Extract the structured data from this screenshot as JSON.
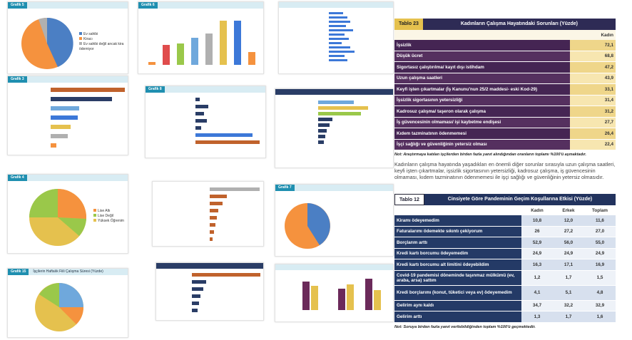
{
  "thumbs": [
    {
      "tag": "Grafik 5",
      "legend": [
        "Ev sahibi",
        "Kiracı",
        "Ev sahibi değil ancak kira ödemiyor"
      ]
    },
    {
      "tag": "Grafik 6"
    },
    {
      "tag": "Grafik 3"
    },
    {
      "tag": "Grafik 8"
    },
    {
      "tag": "Grafik 4",
      "legend": [
        "Lise Altı",
        "Lise Değil",
        "Yüksek Öğrenim"
      ]
    },
    {
      "tag": "Grafik 7"
    },
    {
      "tag": "Grafik 15",
      "title": "İşçilerin Haftalık Fiili Çalışma Süresi (Yüzde)"
    }
  ],
  "table23": {
    "tag": "Tablo 23",
    "title": "Kadınların Çalışma Hayatındaki Sorunları (Yüzde)",
    "column": "Kadın",
    "rows": [
      [
        "İşsizlik",
        "72,1"
      ],
      [
        "Düşük ücret",
        "68,8"
      ],
      [
        "Sigortasız çalıştırılma/ kayıt dışı istihdam",
        "47,2"
      ],
      [
        "Uzun çalışma saatleri",
        "43,9"
      ],
      [
        "Keyfi işten çıkartmalar (İş Kanunu'nun 25/2 maddesi- eski Kod-29)",
        "33,1"
      ],
      [
        "İşsizlik sigortasının yetersizliği",
        "31,4"
      ],
      [
        "Kadrosuz çalışma/ taşeron olarak çalışma",
        "31,2"
      ],
      [
        "İş güvencesinin olmaması/ işi kaybetme endişesi",
        "27,7"
      ],
      [
        "Kıdem tazminatının ödenmemesi",
        "26,4"
      ],
      [
        "İşçi sağlığı ve güvenliğinin yetersiz olması",
        "22,4"
      ]
    ],
    "note": "Not: Araştırmaya katılan işçilerden birden fazla yanıt alındığından oranların toplamı %100'ü aşmaktadır.",
    "paragraph": "Kadınların çalışma hayatında yaşadıkları en önemli diğer sorunlar sırasıyla uzun çalışma saatleri, keyfi işten çıkartmalar, işsizlik sigortasının yetersizliği, kadrosuz çalışma, iş güvencesinin olmaması, kıdem tazminatının ödenmemesi ile işçi sağlığı ve güvenliğinin yetersiz olmasıdır."
  },
  "table12": {
    "tag": "Tablo 12",
    "title": "Cinsiyete Göre Pandeminin Geçim Koşullarına Etkisi (Yüzde)",
    "columns": [
      "Kadın",
      "Erkek",
      "Toplam"
    ],
    "rows": [
      [
        "Kiramı ödeyemedim",
        "10,8",
        "12,0",
        "11,6"
      ],
      [
        "Faturalarımı ödemekte sıkıntı çekiyorum",
        "26",
        "27,2",
        "27,0"
      ],
      [
        "Borçlarım arttı",
        "52,9",
        "56,0",
        "55,0"
      ],
      [
        "Kredi kartı borcumu ödeyemedim",
        "24,9",
        "24,9",
        "24,9"
      ],
      [
        "Kredi kartı borcumu alt limitini ödeyebildim",
        "16,3",
        "17,1",
        "16,9"
      ],
      [
        "Covid-19 pandemisi döneminde taşınmaz mülkümü (ev, araba, arsa) sattım",
        "1,2",
        "1,7",
        "1,5"
      ],
      [
        "Kredi borçlarımı (konut, tüketici veya ev) ödeyemedim",
        "4,1",
        "5,1",
        "4,8"
      ],
      [
        "Gelirim aynı kaldı",
        "34,7",
        "32,2",
        "32,9"
      ],
      [
        "Gelirim arttı",
        "1,3",
        "1,7",
        "1,6"
      ]
    ],
    "note": "Not: Soruya birden fazla yanıt verilebildiğinden toplam %100'ü geçmektedir."
  }
}
